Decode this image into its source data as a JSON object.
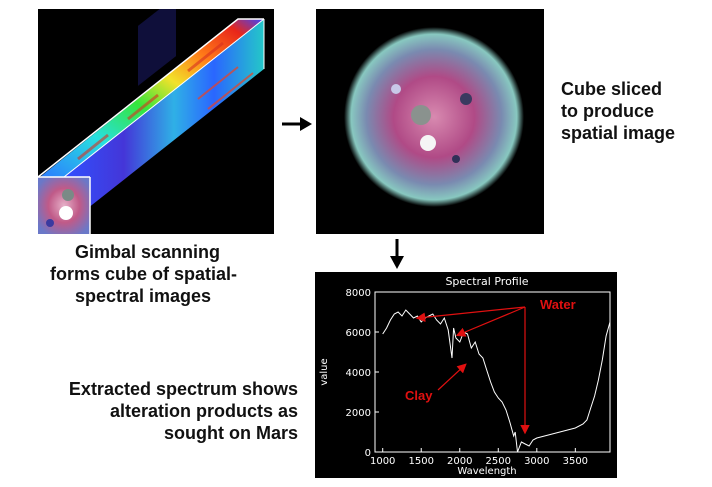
{
  "captions": {
    "gimbal": [
      "Gimbal scanning",
      "forms cube of spatial-",
      "spectral images"
    ],
    "cube_sliced": [
      "Cube sliced",
      "to produce",
      "spatial image"
    ],
    "extracted": [
      "Extracted spectrum shows",
      "alteration products as",
      "sought on Mars"
    ]
  },
  "annotations": {
    "water": "Water",
    "clay": "Clay"
  },
  "colors": {
    "annotation": "#e01010",
    "plot_line": "#ffffff",
    "plot_bg": "#000000"
  },
  "chart_data": {
    "type": "line",
    "title": "Spectral Profile",
    "xlabel": "Wavelength",
    "ylabel": "value",
    "xlim": [
      900,
      3950
    ],
    "ylim": [
      0,
      8000
    ],
    "xticks": [
      1000,
      1500,
      2000,
      2500,
      3000,
      3500
    ],
    "yticks": [
      0,
      2000,
      4000,
      6000,
      8000
    ],
    "series": [
      {
        "x": [
          1000,
          1050,
          1100,
          1150,
          1200,
          1250,
          1300,
          1350,
          1400,
          1450,
          1500,
          1550,
          1600,
          1650,
          1700,
          1750,
          1800,
          1850,
          1900,
          1920,
          1950,
          2000,
          2050,
          2100,
          2150,
          2200,
          2250,
          2300,
          2350,
          2400,
          2450,
          2500,
          2550,
          2600,
          2650,
          2700,
          2720,
          2750,
          2800,
          2850,
          2900,
          2950,
          3000,
          3100,
          3200,
          3300,
          3400,
          3500,
          3600,
          3650,
          3700,
          3750,
          3800,
          3850,
          3900,
          3950
        ],
        "values": [
          5900,
          6200,
          6600,
          6900,
          7000,
          6800,
          7100,
          6900,
          6700,
          6800,
          6500,
          6700,
          6800,
          6900,
          6600,
          6400,
          6700,
          6100,
          4700,
          6200,
          5700,
          5500,
          6000,
          5900,
          5200,
          5500,
          4900,
          4700,
          4100,
          3500,
          3000,
          2700,
          2500,
          2100,
          1500,
          800,
          1000,
          0,
          500,
          400,
          300,
          600,
          700,
          800,
          900,
          1000,
          1100,
          1200,
          1400,
          1600,
          2200,
          2800,
          3600,
          4600,
          5800,
          6500
        ]
      }
    ]
  }
}
